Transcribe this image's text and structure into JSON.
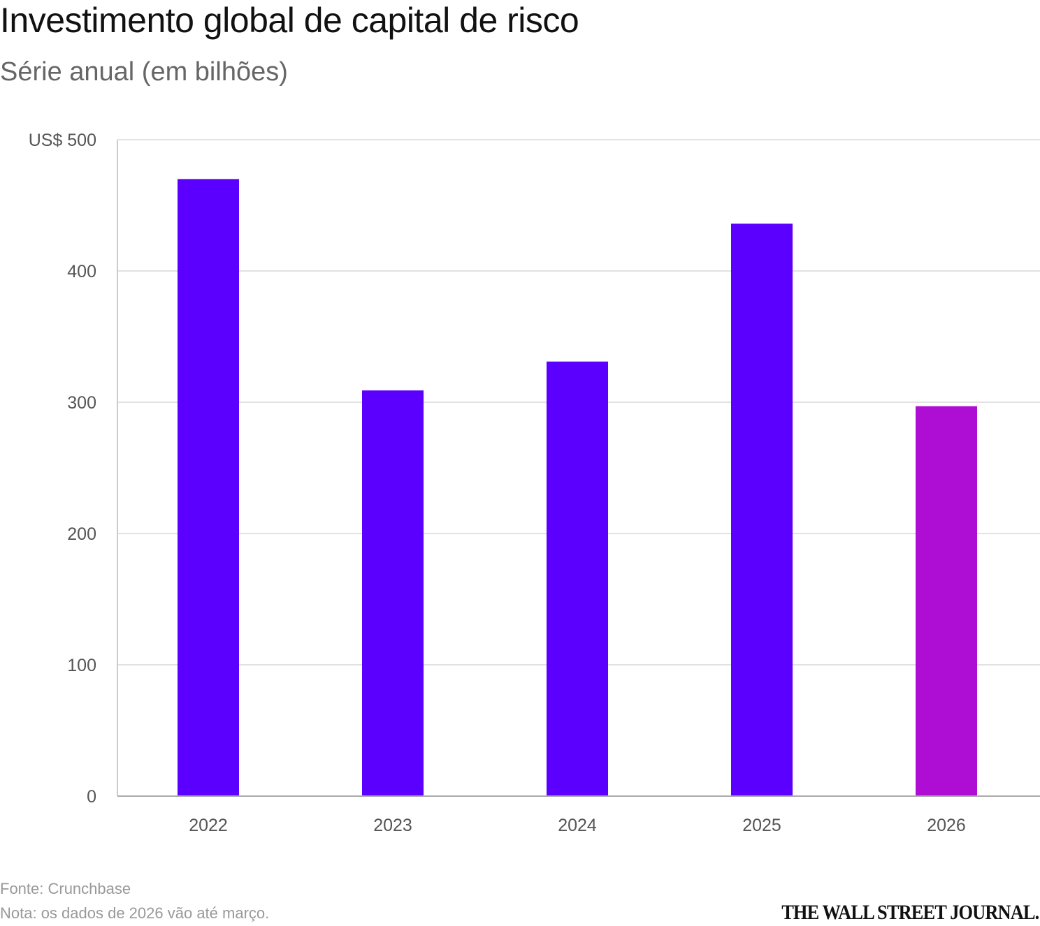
{
  "chart_data": {
    "type": "bar",
    "title": "Investimento global de capital de risco",
    "subtitle": "Série anual (em bilhões)",
    "categories": [
      "2022",
      "2023",
      "2024",
      "2025",
      "2026"
    ],
    "values": [
      470,
      309,
      331,
      436,
      297
    ],
    "colors": [
      "#5B00FF",
      "#5B00FF",
      "#5B00FF",
      "#5B00FF",
      "#AE0DD3"
    ],
    "ylim": [
      0,
      500
    ],
    "yticks": [
      0,
      100,
      200,
      300,
      400,
      500
    ],
    "ytick_labels": [
      "0",
      "100",
      "200",
      "300",
      "400",
      "US$ 500"
    ],
    "grid": true
  },
  "footer": {
    "source": "Fonte: Crunchbase",
    "note": "Nota: os dados de 2026 vão até março.",
    "logo": "THE WALL STREET JOURNAL."
  }
}
